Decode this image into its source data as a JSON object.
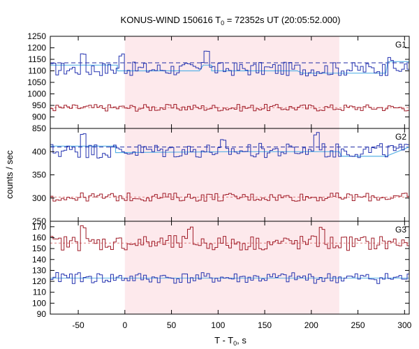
{
  "chart_data": {
    "type": "line",
    "title": "KONUS-WIND 150616 T",
    "title_sub": "0",
    "title_rest": " = 72352s UT (20:05:52.000)",
    "xlabel": "T - T",
    "xlabel_sub": "0",
    "xlabel_rest": ", s",
    "ylabel": "counts / sec",
    "xlim": [
      -80,
      305
    ],
    "xticks": [
      -50,
      0,
      50,
      100,
      150,
      200,
      250,
      300
    ],
    "xtick_labels": [
      "-50",
      "0",
      "50",
      "100",
      "150",
      "200",
      "250",
      "300"
    ],
    "shaded_interval": [
      0,
      230
    ],
    "colors": {
      "shade": "#fde9ec",
      "blue": "#2433b0",
      "red": "#a01c28",
      "fit": "#5ab3e6",
      "dashed": "#1f2aa5"
    },
    "panels": [
      {
        "label": "G1",
        "ylim": [
          850,
          1250
        ],
        "broken_axis": true,
        "yticks": [
          850,
          900,
          950,
          1000,
          1050,
          1100,
          1150,
          1200,
          1250
        ],
        "ytick_labels": [
          "850",
          "900",
          "950",
          "1000",
          "1050",
          "1100",
          "1150",
          "1200",
          "1250"
        ],
        "upper_level": 1135,
        "upper_fit": [
          [
            -80,
            1125
          ],
          [
            -8,
            1125
          ],
          [
            -8,
            1100
          ],
          [
            80,
            1100
          ],
          [
            84,
            1125
          ],
          [
            93,
            1125
          ],
          [
            93,
            1100
          ],
          [
            185,
            1100
          ],
          [
            190,
            1090
          ],
          [
            280,
            1090
          ],
          [
            282,
            1140
          ],
          [
            305,
            1140
          ]
        ],
        "lower_level": 940,
        "upper_mean": 1108,
        "upper_amp": 30,
        "lower_mean": 940,
        "lower_amp": 15,
        "upper_bumps": [
          [
            -45,
            1180
          ],
          [
            -5,
            1175
          ],
          [
            85,
            1190
          ],
          [
            285,
            1160
          ]
        ]
      },
      {
        "label": "G2",
        "ylim": [
          250,
          450
        ],
        "broken_axis": false,
        "yticks": [
          250,
          300,
          350,
          400
        ],
        "ytick_labels": [
          "250",
          "300",
          "350",
          "400"
        ],
        "upper_level": 410,
        "upper_fit": [
          [
            -80,
            412
          ],
          [
            -10,
            412
          ],
          [
            -10,
            398
          ],
          [
            120,
            400
          ],
          [
            230,
            400
          ],
          [
            232,
            390
          ],
          [
            280,
            390
          ],
          [
            305,
            410
          ]
        ],
        "lower_level": 302,
        "upper_mean": 402,
        "upper_amp": 16,
        "lower_mean": 302,
        "lower_amp": 9,
        "upper_bumps": [
          [
            -45,
            440
          ],
          [
            205,
            443
          ],
          [
            105,
            432
          ]
        ]
      },
      {
        "label": "G3",
        "ylim": [
          90,
          175
        ],
        "broken_axis": false,
        "yticks": [
          90,
          100,
          110,
          120,
          130,
          140,
          150,
          160,
          170
        ],
        "ytick_labels": [
          "90",
          "100",
          "110",
          "120",
          "130",
          "140",
          "150",
          "160",
          "170"
        ],
        "upper_level": 155,
        "upper_fit": [
          [
            -80,
            123
          ],
          [
            305,
            123
          ]
        ],
        "lower_level": 123,
        "upper_mean": 155,
        "upper_amp": 7,
        "lower_mean": 123,
        "lower_amp": 5,
        "upper_bumps": [
          [
            -45,
            172
          ],
          [
            210,
            170
          ],
          [
            70,
            171
          ]
        ]
      }
    ],
    "bin_width": 2.944
  }
}
